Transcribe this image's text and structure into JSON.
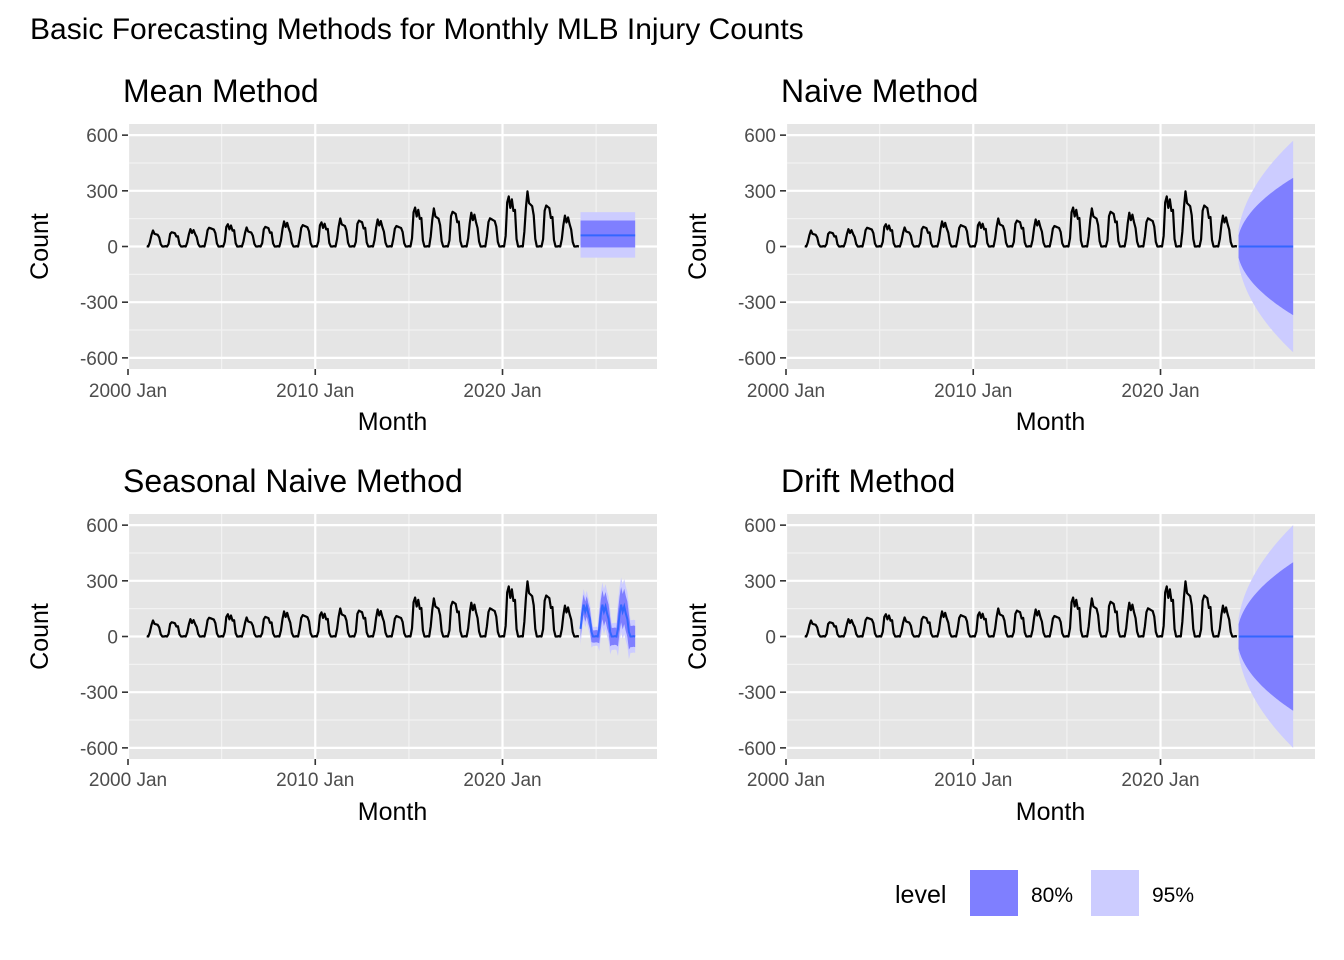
{
  "title": "Basic Forecasting Methods for Monthly MLB Injury Counts",
  "colors": {
    "panel_bg": "#e5e5e5",
    "grid_major": "#ffffff",
    "history_line": "#000000",
    "forecast_line": "#3366ff",
    "band_80": "#7f7fff",
    "band_95": "#ccccff"
  },
  "legend": {
    "title": "level",
    "items": [
      {
        "label": "80%",
        "color": "#7f7fff"
      },
      {
        "label": "95%",
        "color": "#ccccff"
      }
    ]
  },
  "chart_data": [
    {
      "type": "line",
      "title": "Mean Method",
      "xlabel": "Month",
      "ylabel": "Count",
      "xticks": [
        "2000 Jan",
        "2010 Jan",
        "2020 Jan"
      ],
      "yticks": [
        "600",
        "300",
        "0",
        "-300",
        "-600"
      ],
      "ylim": [
        -660,
        660
      ],
      "history": {
        "start": "2001 Jan",
        "end": "2024 Feb",
        "seasonal_peaks": [
          80,
          80,
          90,
          110,
          120,
          95,
          110,
          130,
          125,
          130,
          140,
          145,
          140,
          120,
          210,
          190,
          195,
          175,
          165,
          270,
          275,
          230,
          160,
          160
        ],
        "seasonal_peaks_note": ""
      },
      "forecast": {
        "start": "2024 Mar",
        "end": "2027 Feb",
        "point": 60,
        "lo80": -5,
        "hi80": 140,
        "lo95": -60,
        "hi95": 185
      }
    },
    {
      "type": "line",
      "title": "Naive Method",
      "xlabel": "Month",
      "ylabel": "Count",
      "xticks": [
        "2000 Jan",
        "2010 Jan",
        "2020 Jan"
      ],
      "yticks": [
        "600",
        "300",
        "0",
        "-300",
        "-600"
      ],
      "ylim": [
        -660,
        660
      ],
      "forecast": {
        "start": "2024 Mar",
        "end": "2027 Feb",
        "point": 0,
        "hi80_end": 370,
        "lo80_end": -370,
        "hi95_end": 570,
        "lo95_end": -570
      }
    },
    {
      "type": "line",
      "title": "Seasonal Naive Method",
      "xlabel": "Month",
      "ylabel": "Count",
      "xticks": [
        "2000 Jan",
        "2010 Jan",
        "2020 Jan"
      ],
      "yticks": [
        "600",
        "300",
        "0",
        "-300",
        "-600"
      ],
      "ylim": [
        -660,
        660
      ],
      "forecast": {
        "start": "2024 Mar",
        "end": "2027 Feb",
        "repeats_last_season": true,
        "season_peak": 165,
        "hi80_peak": 230,
        "lo80_trough": -40,
        "hi95_peak": 290,
        "lo95_trough": -120
      }
    },
    {
      "type": "line",
      "title": "Drift Method",
      "xlabel": "Month",
      "ylabel": "Count",
      "xticks": [
        "2000 Jan",
        "2010 Jan",
        "2020 Jan"
      ],
      "yticks": [
        "600",
        "300",
        "0",
        "-300",
        "-600"
      ],
      "ylim": [
        -660,
        660
      ],
      "forecast": {
        "start": "2024 Mar",
        "end": "2027 Feb",
        "point": 0,
        "hi80_end": 400,
        "lo80_end": -400,
        "hi95_end": 600,
        "lo95_end": -600
      }
    }
  ]
}
